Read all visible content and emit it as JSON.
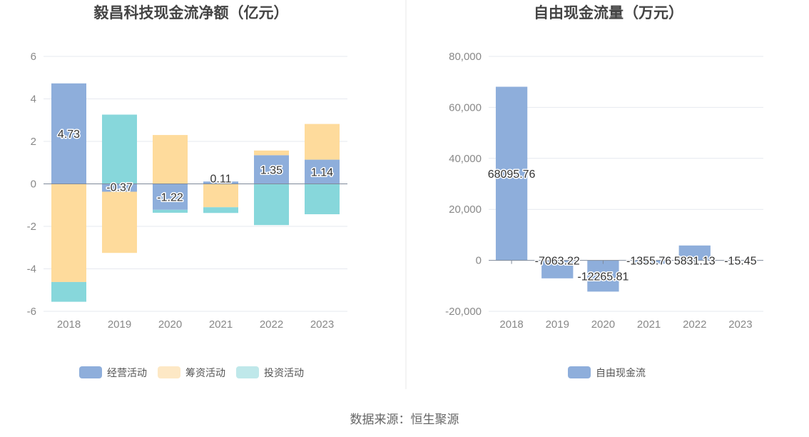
{
  "source_text": "数据来源：恒生聚源",
  "chart_data": [
    {
      "type": "bar",
      "stacked": true,
      "title": "毅昌科技现金流净额（亿元）",
      "categories": [
        "2018",
        "2019",
        "2020",
        "2021",
        "2022",
        "2023"
      ],
      "ylim": [
        -6,
        6
      ],
      "yticks": [
        "6",
        "4",
        "2",
        "0",
        "-2",
        "-4",
        "-6"
      ],
      "series": [
        {
          "name": "经营活动",
          "color": "#8eaedb",
          "values": [
            4.73,
            -0.37,
            -1.22,
            0.11,
            1.35,
            1.14
          ]
        },
        {
          "name": "筹资活动",
          "color": "#fedb9c",
          "values": [
            -4.62,
            -2.88,
            2.3,
            -1.1,
            0.22,
            1.68
          ]
        },
        {
          "name": "投资活动",
          "color": "#87d7db",
          "values": [
            -0.93,
            3.26,
            -0.14,
            -0.27,
            -1.94,
            -1.43
          ]
        }
      ],
      "labels": [
        "4.73",
        "-0.37",
        "-1.22",
        "0.11",
        "1.35",
        "1.14"
      ],
      "legend_position": "bottom"
    },
    {
      "type": "bar",
      "title": "自由现金流量（万元）",
      "categories": [
        "2018",
        "2019",
        "2020",
        "2021",
        "2022",
        "2023"
      ],
      "ylim": [
        -20000,
        80000
      ],
      "yticks": [
        "80,000",
        "60,000",
        "40,000",
        "20,000",
        "0",
        "-20,000"
      ],
      "series": [
        {
          "name": "自由现金流",
          "color": "#8eaedb",
          "values": [
            68095.76,
            -7063.22,
            -12265.81,
            -1355.76,
            5831.13,
            -15.45
          ]
        }
      ],
      "labels": [
        "68095.76",
        "-7063.22",
        "-12265.81",
        "-1355.76",
        "5831.13",
        "-15.45"
      ],
      "legend_position": "bottom"
    }
  ]
}
